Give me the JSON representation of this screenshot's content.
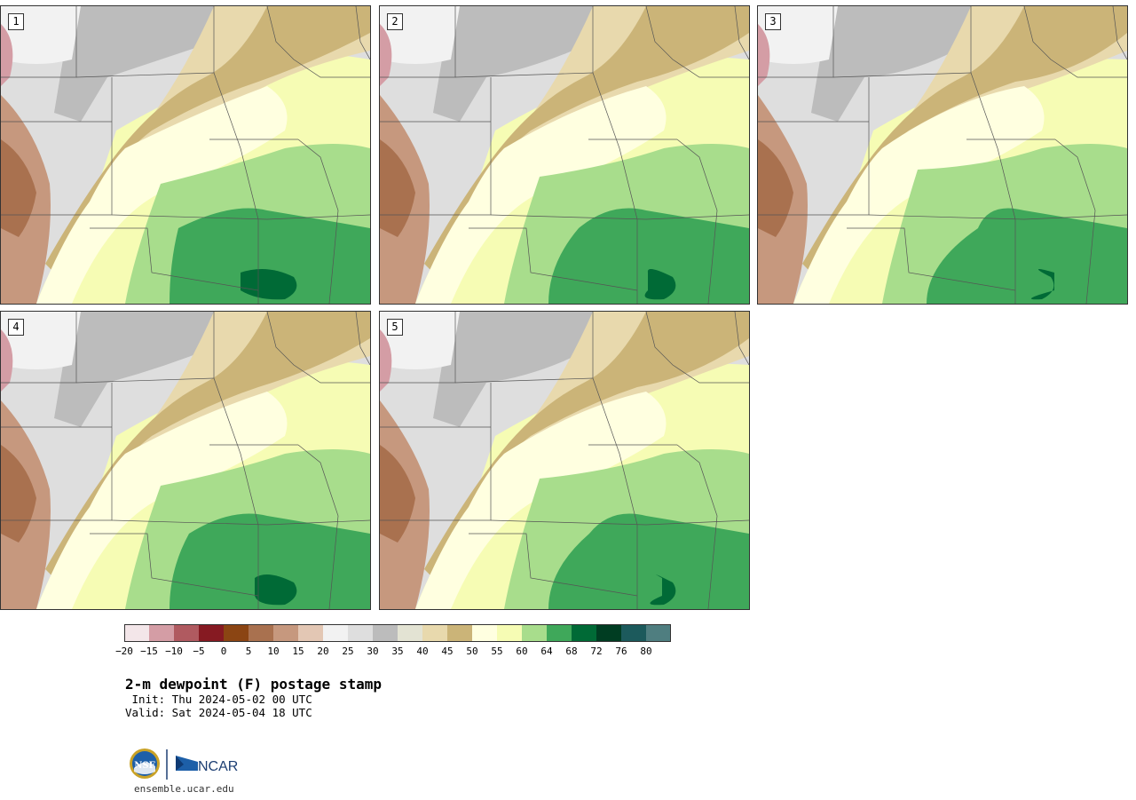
{
  "panels": [
    {
      "label": "1"
    },
    {
      "label": "2"
    },
    {
      "label": "3"
    },
    {
      "label": "4"
    },
    {
      "label": "5"
    }
  ],
  "colorbar": {
    "colors": [
      "#f3e6e9",
      "#d49da5",
      "#b05a60",
      "#861a22",
      "#8b4513",
      "#a9714f",
      "#c6987e",
      "#e3c7b4",
      "#f2f2f2",
      "#dedede",
      "#bcbcbc",
      "#e3e3d3",
      "#e8d9ad",
      "#cbb478",
      "#ffffe0",
      "#f6fcb4",
      "#a8dd8c",
      "#3fa85a",
      "#006a36",
      "#003d22",
      "#1c5a5c",
      "#4f7e80"
    ],
    "tick_labels": [
      "−20",
      "−15",
      "−10",
      "−5",
      "0",
      "5",
      "10",
      "15",
      "20",
      "25",
      "30",
      "35",
      "40",
      "45",
      "50",
      "55",
      "60",
      "64",
      "68",
      "72",
      "76",
      "80"
    ]
  },
  "title": "2-m dewpoint (F) postage stamp",
  "init": " Init: Thu 2024-05-02 00 UTC",
  "valid": "Valid: Sat 2024-05-04 18 UTC",
  "logos": {
    "nsf": "NSF",
    "ncar": "NCAR"
  },
  "site": "ensemble.ucar.edu"
}
